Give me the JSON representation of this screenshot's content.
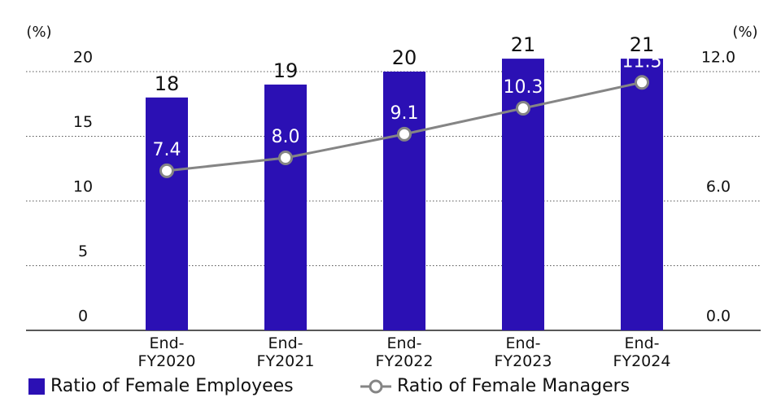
{
  "chart_data": {
    "type": "bar",
    "ylabel": "(%)",
    "y2label": "(%)",
    "categories": [
      "End-\nFY2020",
      "End-\nFY2021",
      "End-\nFY2022",
      "End-\nFY2023",
      "End-\nFY2024"
    ],
    "series": [
      {
        "name": "Ratio of Female Employees",
        "type": "bar",
        "color": "#2b10b4",
        "values": [
          18,
          19,
          20,
          21,
          21
        ]
      },
      {
        "name": "Ratio of Female Managers",
        "type": "line",
        "axis": "y2",
        "color": "#858585",
        "values": [
          7.4,
          8.0,
          9.1,
          10.3,
          11.5
        ],
        "value_labels": [
          "7.4",
          "8.0",
          "9.1",
          "10.3",
          "11.5"
        ]
      }
    ],
    "ylim": [
      0,
      20
    ],
    "yticks": [
      0,
      5,
      10,
      15,
      20
    ],
    "y2lim": [
      0,
      12
    ],
    "y2ticks": [
      {
        "value": 0,
        "label": "0.0"
      },
      {
        "value": 6,
        "label": "6.0"
      },
      {
        "value": 12,
        "label": "12.0"
      }
    ],
    "grid": true
  }
}
